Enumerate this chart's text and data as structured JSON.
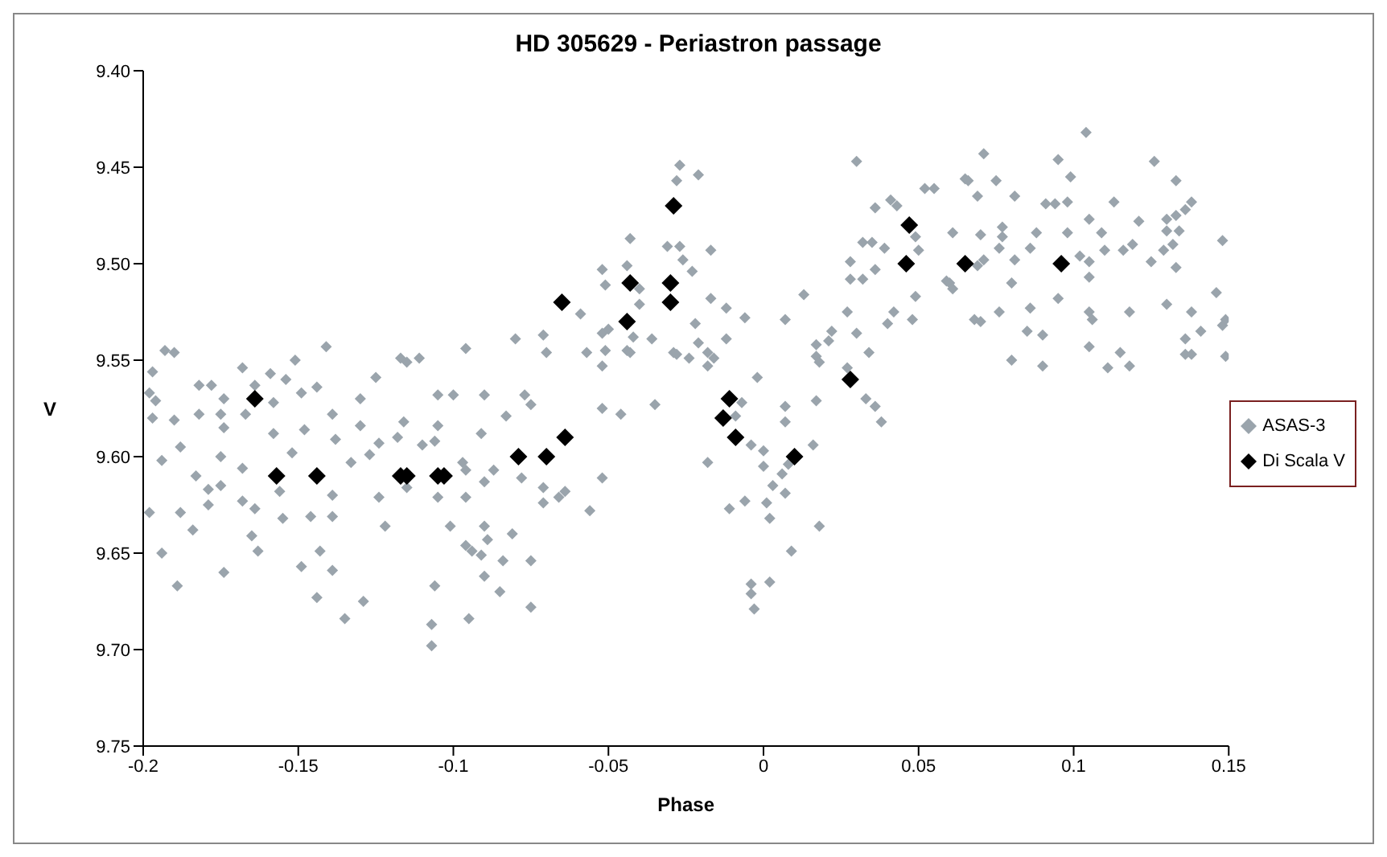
{
  "chart_data": {
    "type": "scatter",
    "title": "HD 305629 - Periastron passage",
    "xlabel": "Phase",
    "ylabel": "V",
    "xlim": [
      -0.2,
      0.15
    ],
    "xticks": [
      -0.2,
      -0.15,
      -0.1,
      -0.05,
      0,
      0.05,
      0.1,
      0.15
    ],
    "ylim": [
      9.75,
      9.4
    ],
    "yticks": [
      {
        "value": 9.4,
        "label": "9.40"
      },
      {
        "value": 9.45,
        "label": "9.45"
      },
      {
        "value": 9.5,
        "label": "9.50"
      },
      {
        "value": 9.55,
        "label": "9.55"
      },
      {
        "value": 9.6,
        "label": "9.60"
      },
      {
        "value": 9.65,
        "label": "9.65"
      },
      {
        "value": 9.7,
        "label": "9.70"
      },
      {
        "value": 9.75,
        "label": "9.75"
      }
    ],
    "legend": "right",
    "marker": "diamond",
    "series": [
      {
        "name": "ASAS-3",
        "color": "#9aa4ac",
        "x": [
          -0.193,
          -0.19,
          -0.197,
          -0.198,
          -0.196,
          -0.197,
          -0.19,
          -0.182,
          -0.178,
          -0.174,
          -0.182,
          -0.175,
          -0.188,
          -0.194,
          -0.183,
          -0.198,
          -0.188,
          -0.184,
          -0.194,
          -0.189,
          -0.175,
          -0.179,
          -0.175,
          -0.179,
          -0.174,
          -0.168,
          -0.164,
          -0.159,
          -0.151,
          -0.154,
          -0.149,
          -0.144,
          -0.158,
          -0.167,
          -0.158,
          -0.148,
          -0.168,
          -0.152,
          -0.156,
          -0.168,
          -0.164,
          -0.165,
          -0.163,
          -0.155,
          -0.174,
          -0.149,
          -0.146,
          -0.139,
          -0.139,
          -0.143,
          -0.139,
          -0.144,
          -0.135,
          -0.129,
          -0.141,
          -0.139,
          -0.138,
          -0.133,
          -0.13,
          -0.13,
          -0.125,
          -0.127,
          -0.124,
          -0.122,
          -0.124,
          -0.118,
          -0.117,
          -0.043,
          -0.031,
          -0.052,
          -0.044,
          -0.051,
          -0.04,
          -0.04,
          -0.059,
          -0.052,
          -0.05,
          -0.042,
          -0.036,
          -0.08,
          -0.071,
          -0.07,
          -0.096,
          -0.057,
          -0.051,
          -0.044,
          -0.043,
          -0.052,
          -0.029,
          -0.115,
          -0.111,
          -0.105,
          -0.1,
          -0.09,
          -0.077,
          -0.075,
          -0.083,
          -0.052,
          -0.046,
          -0.035,
          -0.116,
          -0.105,
          -0.091,
          -0.11,
          -0.106,
          -0.097,
          -0.096,
          -0.087,
          -0.09,
          -0.115,
          -0.105,
          -0.096,
          -0.078,
          -0.071,
          -0.066,
          -0.064,
          -0.071,
          -0.056,
          -0.052,
          -0.101,
          -0.09,
          -0.089,
          -0.081,
          -0.096,
          -0.094,
          -0.091,
          -0.084,
          -0.075,
          -0.09,
          -0.106,
          -0.085,
          -0.075,
          -0.095,
          -0.107,
          -0.107,
          -0.027,
          -0.021,
          -0.028,
          0.03,
          0.052,
          0.055,
          0.036,
          0.041,
          0.043,
          -0.027,
          -0.017,
          -0.026,
          -0.023,
          0.032,
          0.035,
          0.039,
          0.028,
          0.028,
          0.032,
          0.036,
          0.05,
          0.049,
          0.013,
          -0.017,
          -0.012,
          -0.006,
          0.007,
          0.027,
          0.042,
          0.04,
          0.048,
          0.049,
          0.059,
          -0.022,
          0.022,
          0.03,
          -0.012,
          0.017,
          0.021,
          -0.021,
          0.034,
          0.017,
          0.018,
          -0.028,
          -0.024,
          -0.018,
          -0.016,
          -0.018,
          0.027,
          -0.002,
          0.033,
          0.036,
          0.038,
          0.017,
          0.007,
          0.007,
          -0.007,
          -0.009,
          -0.004,
          0,
          0.016,
          -0.018,
          0,
          0.006,
          0.008,
          0.003,
          0.007,
          -0.011,
          -0.006,
          0.001,
          0.002,
          0.018,
          0.009,
          -0.004,
          -0.004,
          0.002,
          -0.003,
          0.104,
          0.071,
          0.095,
          0.126,
          0.065,
          0.066,
          0.075,
          0.099,
          0.133,
          0.069,
          0.081,
          0.091,
          0.094,
          0.098,
          0.113,
          0.138,
          0.136,
          0.133,
          0.105,
          0.121,
          0.13,
          0.13,
          0.134,
          0.061,
          0.077,
          0.077,
          0.07,
          0.088,
          0.098,
          0.109,
          0.076,
          0.086,
          0.11,
          0.116,
          0.119,
          0.129,
          0.132,
          0.148,
          0.071,
          0.069,
          0.081,
          0.102,
          0.105,
          0.125,
          0.133,
          0.06,
          0.061,
          0.08,
          0.105,
          0.095,
          0.146,
          0.068,
          0.07,
          0.076,
          0.086,
          0.105,
          0.106,
          0.118,
          0.13,
          0.138,
          0.148,
          0.149,
          0.085,
          0.09,
          0.141,
          0.136,
          0.136,
          0.138,
          0.105,
          0.115,
          0.149,
          0.08,
          0.09,
          0.111,
          0.118
        ],
        "values": [
          9.545,
          9.546,
          9.556,
          9.567,
          9.571,
          9.58,
          9.581,
          9.563,
          9.563,
          9.57,
          9.578,
          9.578,
          9.595,
          9.602,
          9.61,
          9.629,
          9.629,
          9.638,
          9.65,
          9.667,
          9.6,
          9.617,
          9.615,
          9.625,
          9.585,
          9.554,
          9.563,
          9.557,
          9.55,
          9.56,
          9.567,
          9.564,
          9.572,
          9.578,
          9.588,
          9.586,
          9.606,
          9.598,
          9.618,
          9.623,
          9.627,
          9.641,
          9.649,
          9.632,
          9.66,
          9.657,
          9.631,
          9.62,
          9.631,
          9.649,
          9.659,
          9.673,
          9.684,
          9.675,
          9.543,
          9.578,
          9.591,
          9.603,
          9.57,
          9.584,
          9.559,
          9.599,
          9.621,
          9.636,
          9.593,
          9.59,
          9.549,
          9.487,
          9.491,
          9.503,
          9.501,
          9.511,
          9.513,
          9.521,
          9.526,
          9.536,
          9.534,
          9.538,
          9.539,
          9.539,
          9.537,
          9.546,
          9.544,
          9.546,
          9.545,
          9.545,
          9.546,
          9.553,
          9.546,
          9.551,
          9.549,
          9.568,
          9.568,
          9.568,
          9.568,
          9.573,
          9.579,
          9.575,
          9.578,
          9.573,
          9.582,
          9.584,
          9.588,
          9.594,
          9.592,
          9.603,
          9.607,
          9.607,
          9.613,
          9.616,
          9.621,
          9.621,
          9.611,
          9.616,
          9.621,
          9.618,
          9.624,
          9.628,
          9.611,
          9.636,
          9.636,
          9.643,
          9.64,
          9.646,
          9.649,
          9.651,
          9.654,
          9.654,
          9.662,
          9.667,
          9.67,
          9.678,
          9.684,
          9.687,
          9.698,
          9.449,
          9.454,
          9.457,
          9.447,
          9.461,
          9.461,
          9.471,
          9.467,
          9.47,
          9.491,
          9.493,
          9.498,
          9.504,
          9.489,
          9.489,
          9.492,
          9.499,
          9.508,
          9.508,
          9.503,
          9.493,
          9.486,
          9.516,
          9.518,
          9.523,
          9.528,
          9.529,
          9.525,
          9.525,
          9.531,
          9.529,
          9.517,
          9.509,
          9.531,
          9.535,
          9.536,
          9.539,
          9.542,
          9.54,
          9.541,
          9.546,
          9.548,
          9.551,
          9.547,
          9.549,
          9.546,
          9.549,
          9.553,
          9.554,
          9.559,
          9.57,
          9.574,
          9.582,
          9.571,
          9.574,
          9.582,
          9.572,
          9.579,
          9.594,
          9.597,
          9.594,
          9.603,
          9.605,
          9.609,
          9.604,
          9.615,
          9.619,
          9.627,
          9.623,
          9.624,
          9.632,
          9.636,
          9.649,
          9.666,
          9.671,
          9.665,
          9.679,
          9.432,
          9.443,
          9.446,
          9.447,
          9.456,
          9.457,
          9.457,
          9.455,
          9.457,
          9.465,
          9.465,
          9.469,
          9.469,
          9.468,
          9.468,
          9.468,
          9.472,
          9.475,
          9.477,
          9.478,
          9.477,
          9.483,
          9.483,
          9.484,
          9.481,
          9.486,
          9.485,
          9.484,
          9.484,
          9.484,
          9.492,
          9.492,
          9.493,
          9.493,
          9.49,
          9.493,
          9.49,
          9.488,
          9.498,
          9.501,
          9.498,
          9.496,
          9.499,
          9.499,
          9.502,
          9.51,
          9.513,
          9.51,
          9.507,
          9.518,
          9.515,
          9.529,
          9.53,
          9.525,
          9.523,
          9.525,
          9.529,
          9.525,
          9.521,
          9.525,
          9.532,
          9.529,
          9.535,
          9.537,
          9.535,
          9.539,
          9.547,
          9.547,
          9.543,
          9.546,
          9.548,
          9.55,
          9.553,
          9.554,
          9.553
        ]
      },
      {
        "name": "Di Scala V",
        "color": "#000000",
        "x": [
          -0.164,
          -0.157,
          -0.144,
          -0.117,
          -0.115,
          -0.105,
          -0.103,
          -0.079,
          -0.07,
          -0.064,
          -0.065,
          -0.044,
          -0.043,
          -0.03,
          -0.03,
          -0.029,
          -0.011,
          -0.013,
          -0.009,
          0.01,
          0.028,
          0.046,
          0.047,
          0.065,
          0.096
        ],
        "values": [
          9.57,
          9.61,
          9.61,
          9.61,
          9.61,
          9.61,
          9.61,
          9.6,
          9.6,
          9.59,
          9.52,
          9.53,
          9.51,
          9.51,
          9.52,
          9.47,
          9.57,
          9.58,
          9.59,
          9.6,
          9.56,
          9.5,
          9.48,
          9.5,
          9.5
        ]
      }
    ]
  }
}
